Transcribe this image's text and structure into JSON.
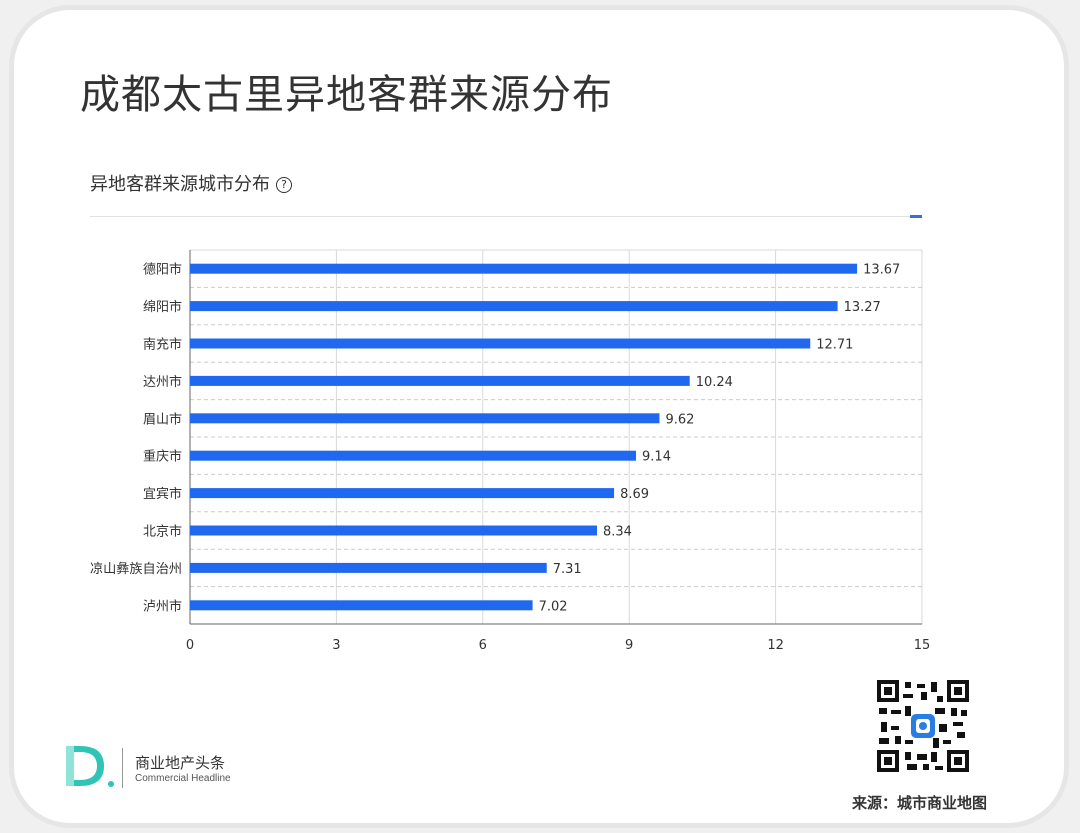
{
  "page": {
    "title": "成都太古里异地客群来源分布",
    "chart_heading": "异地客群来源城市分布",
    "help_icon_glyph": "?"
  },
  "brand": {
    "name_cn": "商业地产头条",
    "name_en": "Commercial Headline",
    "logo_letter": "D",
    "color": "#2ec4b6"
  },
  "source_label": "来源：城市商业地图",
  "colors": {
    "bar": "#2168f0",
    "grid": "#d9d9d9",
    "text": "#333333"
  },
  "chart_data": {
    "type": "bar",
    "orientation": "horizontal",
    "categories": [
      "德阳市",
      "绵阳市",
      "南充市",
      "达州市",
      "眉山市",
      "重庆市",
      "宜宾市",
      "北京市",
      "凉山彝族自治州",
      "泸州市"
    ],
    "values": [
      13.67,
      13.27,
      12.71,
      10.24,
      9.62,
      9.14,
      8.69,
      8.34,
      7.31,
      7.02
    ],
    "value_labels": [
      "13.67",
      "13.27",
      "12.71",
      "10.24",
      "9.62",
      "9.14",
      "8.69",
      "8.34",
      "7.31",
      "7.02"
    ],
    "xlim": [
      0,
      15
    ],
    "xticks": [
      "0",
      "3",
      "6",
      "9",
      "12",
      "15"
    ],
    "xtick_values": [
      0,
      3,
      6,
      9,
      12,
      15
    ],
    "grid": true,
    "title": "",
    "xlabel": "",
    "ylabel": ""
  }
}
